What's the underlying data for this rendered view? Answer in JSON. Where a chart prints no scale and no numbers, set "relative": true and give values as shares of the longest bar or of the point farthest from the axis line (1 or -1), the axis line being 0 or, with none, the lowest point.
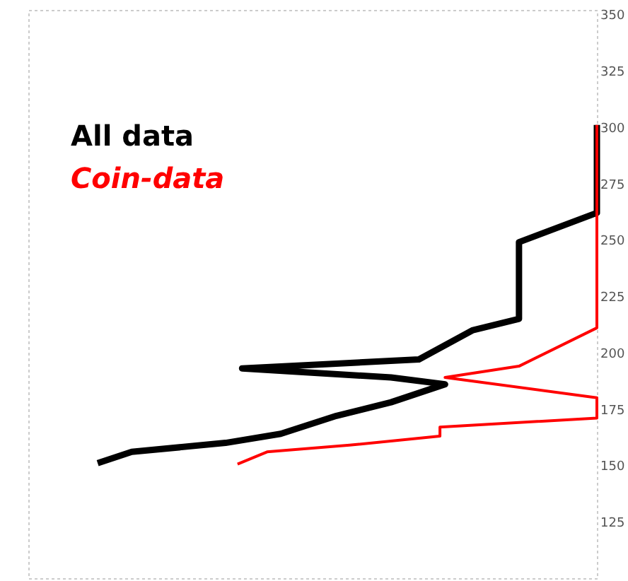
{
  "chart_data": {
    "type": "line",
    "orientation": "horizontal",
    "relative": true,
    "ylim": [
      100,
      352
    ],
    "yticks": [
      125,
      150,
      175,
      200,
      225,
      250,
      275,
      300,
      325,
      350
    ],
    "grid": false,
    "marker": "none",
    "line_style": "solid",
    "series": [
      {
        "name": "All data",
        "color": "#000000",
        "x": [
          151,
          156,
          160,
          164,
          172,
          178,
          186,
          189,
          193,
          197,
          210,
          215,
          234,
          249,
          262,
          280,
          301
        ],
        "values": [
          0.122,
          0.182,
          0.347,
          0.444,
          0.542,
          0.638,
          0.733,
          0.638,
          0.376,
          0.687,
          0.782,
          0.863,
          0.863,
          0.863,
          1,
          1,
          1
        ]
      },
      {
        "name": "Coin-data",
        "color": "#ff0000",
        "x": [
          150.6,
          156,
          159,
          163,
          167,
          171,
          180,
          189,
          194,
          211,
          301
        ],
        "values": [
          0.368,
          0.42,
          0.565,
          0.724,
          0.724,
          1,
          1,
          0.733,
          0.863,
          1,
          1
        ]
      }
    ]
  }
}
